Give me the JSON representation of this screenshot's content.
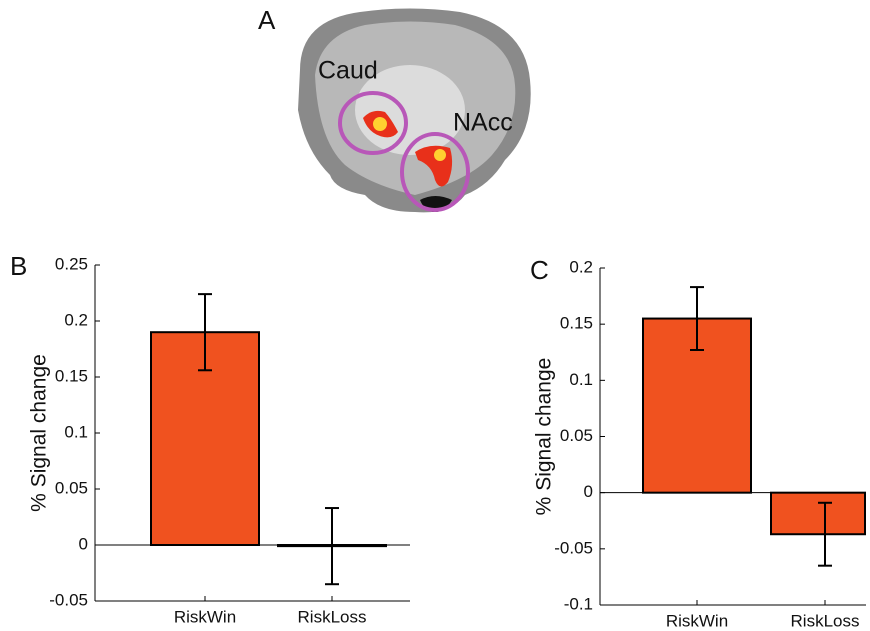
{
  "figure": {
    "panel_label": "A",
    "regions": [
      "Caud",
      "NAcc"
    ]
  },
  "chart_data": [
    {
      "type": "bar",
      "panel_label": "B",
      "y_label": "% Signal change",
      "categories": [
        "RiskWin",
        "RiskLoss"
      ],
      "values": [
        0.19,
        -0.001
      ],
      "errors": [
        0.034,
        0.034
      ],
      "color": "#f0521f",
      "ylim": [
        -0.05,
        0.25
      ],
      "yticks": [
        -0.05,
        0,
        0.05,
        0.1,
        0.15,
        0.2,
        0.25
      ]
    },
    {
      "type": "bar",
      "panel_label": "C",
      "y_label": "% Signal change",
      "categories": [
        "RiskWin",
        "RiskLoss"
      ],
      "values": [
        0.155,
        -0.037
      ],
      "errors": [
        0.028,
        0.028
      ],
      "color": "#f0521f",
      "ylim": [
        -0.1,
        0.2
      ],
      "yticks": [
        -0.1,
        -0.05,
        0,
        0.05,
        0.1,
        0.15,
        0.2
      ]
    }
  ]
}
